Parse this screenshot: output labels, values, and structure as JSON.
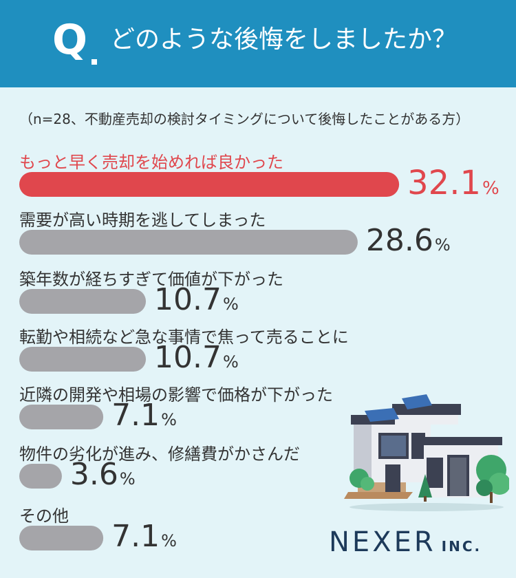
{
  "header": {
    "q": "Q",
    "question": "どのような後悔をしましたか？"
  },
  "subtitle": "（n=28、不動産売却の検討タイミングについて後悔したことがある方）",
  "logo": {
    "main": "NEXER",
    "small": "INC."
  },
  "colors": {
    "header": "#1f8fbf",
    "background": "#e3f4f8",
    "highlight": "#e0474d",
    "bar": "#a5a5a9"
  },
  "icons": {
    "illustration": "house-with-solar-panels-icon"
  },
  "chart_data": {
    "type": "bar",
    "orientation": "horizontal",
    "categories": [
      "もっと早く売却を始めれば良かった",
      "需要が高い時期を逃してしまった",
      "築年数が経ちすぎて価値が下がった",
      "転勤や相続など急な事情で焦って売ることに",
      "近隣の開発や相場の影響で価格が下がった",
      "物件の劣化が進み、修繕費がかさんだ",
      "その他"
    ],
    "values": [
      32.1,
      28.6,
      10.7,
      10.7,
      7.1,
      3.6,
      7.1
    ],
    "value_labels": [
      "32.1",
      "28.6",
      "10.7",
      "10.7",
      "7.1",
      "3.6",
      "7.1"
    ],
    "unit": "%",
    "highlight_index": 0
  }
}
